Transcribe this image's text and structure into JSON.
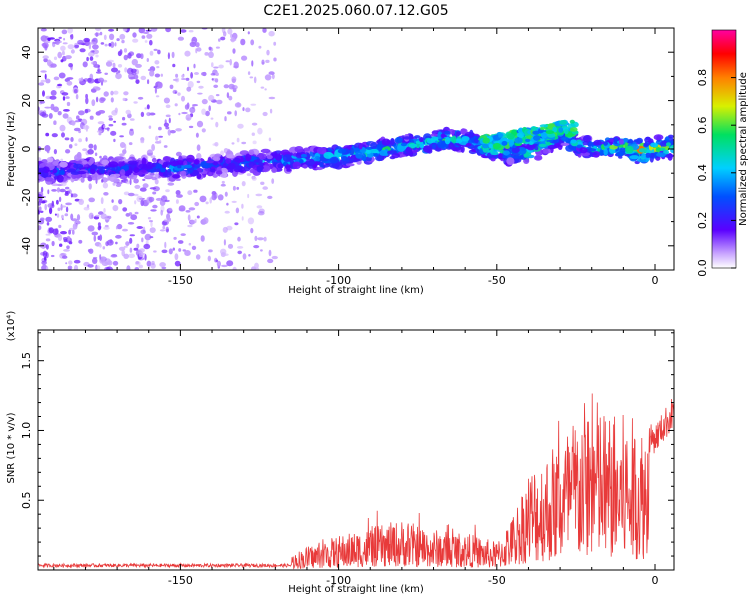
{
  "title": "C2E1.2025.060.07.12.G05",
  "chart_data": [
    {
      "type": "heatmap",
      "xlabel": "Height of straight line (km)",
      "ylabel": "Frequency (Hz)",
      "xlim": [
        -195,
        6
      ],
      "ylim": [
        -50,
        50
      ],
      "xticks": [
        -150,
        -100,
        -50,
        0
      ],
      "yticks": [
        -40,
        -20,
        0,
        20,
        40
      ],
      "colorbar": {
        "label": "Normalized spectral amplitude",
        "range": [
          0,
          1
        ],
        "ticks": [
          0.0,
          0.2,
          0.4,
          0.6,
          0.8
        ]
      },
      "ridge": [
        {
          "x": -190,
          "y": -9,
          "amp": 0.3
        },
        {
          "x": -175,
          "y": -8,
          "amp": 0.3
        },
        {
          "x": -160,
          "y": -8,
          "amp": 0.3
        },
        {
          "x": -150,
          "y": -8,
          "amp": 0.4
        },
        {
          "x": -140,
          "y": -7,
          "amp": 0.3
        },
        {
          "x": -130,
          "y": -6,
          "amp": 0.35
        },
        {
          "x": -120,
          "y": -5,
          "amp": 0.4
        },
        {
          "x": -110,
          "y": -4,
          "amp": 0.45
        },
        {
          "x": -100,
          "y": -3,
          "amp": 0.5
        },
        {
          "x": -90,
          "y": -1,
          "amp": 0.5
        },
        {
          "x": -80,
          "y": 1,
          "amp": 0.55
        },
        {
          "x": -70,
          "y": 3,
          "amp": 0.55
        },
        {
          "x": -60,
          "y": 4,
          "amp": 0.5
        },
        {
          "x": -50,
          "y": -1,
          "amp": 0.5
        },
        {
          "x": -40,
          "y": -2,
          "amp": 0.5
        },
        {
          "x": -30,
          "y": 5,
          "amp": 0.45
        },
        {
          "x": -20,
          "y": 0,
          "amp": 0.55
        },
        {
          "x": -10,
          "y": 1,
          "amp": 0.6
        },
        {
          "x": -5,
          "y": -1,
          "amp": 0.9
        },
        {
          "x": 0,
          "y": 0,
          "amp": 0.7
        },
        {
          "x": 5,
          "y": 1,
          "amp": 0.6
        }
      ]
    },
    {
      "type": "line",
      "xlabel": "Height of straight line (km)",
      "ylabel": "SNR (10 * v/v)",
      "yscale_label": "(x10⁴)",
      "xlim": [
        -195,
        6
      ],
      "ylim": [
        0,
        1.72
      ],
      "xticks": [
        -150,
        -100,
        -50,
        0
      ],
      "yticks": [
        0.5,
        1.0,
        1.5
      ],
      "color": "#e83a3a",
      "envelope": [
        {
          "x": -195,
          "y": 0.02
        },
        {
          "x": -140,
          "y": 0.03
        },
        {
          "x": -120,
          "y": 0.05
        },
        {
          "x": -110,
          "y": 0.15
        },
        {
          "x": -100,
          "y": 0.22
        },
        {
          "x": -90,
          "y": 0.27
        },
        {
          "x": -80,
          "y": 0.32
        },
        {
          "x": -70,
          "y": 0.26
        },
        {
          "x": -60,
          "y": 0.24
        },
        {
          "x": -50,
          "y": 0.18
        },
        {
          "x": -45,
          "y": 0.35
        },
        {
          "x": -40,
          "y": 0.65
        },
        {
          "x": -30,
          "y": 0.85
        },
        {
          "x": -20,
          "y": 1.15
        },
        {
          "x": -15,
          "y": 1.0
        },
        {
          "x": -10,
          "y": 1.0
        },
        {
          "x": -5,
          "y": 0.95
        },
        {
          "x": 0,
          "y": 0.95
        },
        {
          "x": 6,
          "y": 1.15
        }
      ]
    }
  ]
}
